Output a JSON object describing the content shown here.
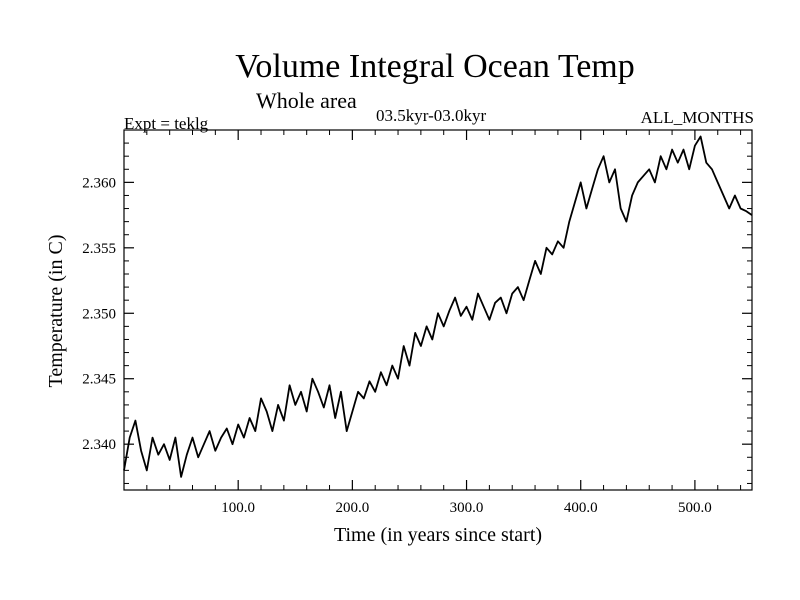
{
  "chart_data": {
    "type": "line",
    "title": "Volume Integral Ocean Temp",
    "subtitle": "Whole area",
    "experiment_label": "Expt = teklg",
    "period_label": "03.5kyr-03.0kyr",
    "months_label": "ALL_MONTHS",
    "xlabel": "Time (in years since start)",
    "ylabel": "Temperature (in C)",
    "xlim": [
      0,
      550
    ],
    "ylim": [
      2.3365,
      2.364
    ],
    "xticks": [
      100,
      200,
      300,
      400,
      500
    ],
    "xtick_labels": [
      "100.0",
      "200.0",
      "300.0",
      "400.0",
      "500.0"
    ],
    "yticks": [
      2.34,
      2.345,
      2.35,
      2.355,
      2.36
    ],
    "ytick_labels": [
      "2.340",
      "2.345",
      "2.350",
      "2.355",
      "2.360"
    ],
    "series": [
      {
        "name": "Volume Integral Ocean Temp",
        "x": [
          0,
          5,
          10,
          15,
          20,
          25,
          30,
          35,
          40,
          45,
          50,
          55,
          60,
          65,
          70,
          75,
          80,
          85,
          90,
          95,
          100,
          105,
          110,
          115,
          120,
          125,
          130,
          135,
          140,
          145,
          150,
          155,
          160,
          165,
          170,
          175,
          180,
          185,
          190,
          195,
          200,
          205,
          210,
          215,
          220,
          225,
          230,
          235,
          240,
          245,
          250,
          255,
          260,
          265,
          270,
          275,
          280,
          285,
          290,
          295,
          300,
          305,
          310,
          315,
          320,
          325,
          330,
          335,
          340,
          345,
          350,
          355,
          360,
          365,
          370,
          375,
          380,
          385,
          390,
          395,
          400,
          405,
          410,
          415,
          420,
          425,
          430,
          435,
          440,
          445,
          450,
          455,
          460,
          465,
          470,
          475,
          480,
          485,
          490,
          495,
          500,
          505,
          510,
          515,
          520,
          525,
          530,
          535,
          540,
          545,
          550
        ],
        "values": [
          2.338,
          2.3405,
          2.3418,
          2.3395,
          2.338,
          2.3405,
          2.3392,
          2.34,
          2.3388,
          2.3405,
          2.3375,
          2.3392,
          2.3405,
          2.339,
          2.34,
          2.341,
          2.3395,
          2.3405,
          2.3412,
          2.34,
          2.3415,
          2.3405,
          2.342,
          2.341,
          2.3435,
          2.3425,
          2.341,
          2.343,
          2.3418,
          2.3445,
          2.343,
          2.344,
          2.3425,
          2.345,
          2.344,
          2.3428,
          2.3445,
          2.342,
          2.344,
          2.341,
          2.3425,
          2.344,
          2.3435,
          2.3448,
          2.344,
          2.3455,
          2.3445,
          2.346,
          2.345,
          2.3475,
          2.346,
          2.3485,
          2.3475,
          2.349,
          2.348,
          2.35,
          2.349,
          2.3502,
          2.3512,
          2.3498,
          2.3505,
          2.3495,
          2.3515,
          2.3505,
          2.3495,
          2.3508,
          2.3512,
          2.35,
          2.3515,
          2.352,
          2.351,
          2.3525,
          2.354,
          2.353,
          2.355,
          2.3545,
          2.3555,
          2.355,
          2.357,
          2.3585,
          2.36,
          2.358,
          2.3595,
          2.361,
          2.362,
          2.36,
          2.361,
          2.358,
          2.357,
          2.359,
          2.36,
          2.3605,
          2.361,
          2.36,
          2.362,
          2.361,
          2.3625,
          2.3615,
          2.3625,
          2.361,
          2.3628,
          2.3635,
          2.3615,
          2.361,
          2.36,
          2.359,
          2.358,
          2.359,
          2.358,
          2.3578,
          2.3575
        ]
      }
    ]
  }
}
